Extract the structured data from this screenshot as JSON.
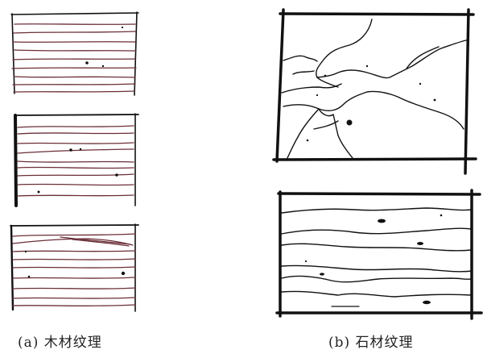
{
  "captions": {
    "a": "(a) 木材纹理",
    "b": "(b) 石材纹理"
  },
  "colors": {
    "ink": "#111111",
    "grain": "#6a2f38",
    "background": "#ffffff",
    "caption_text": "#222222"
  }
}
